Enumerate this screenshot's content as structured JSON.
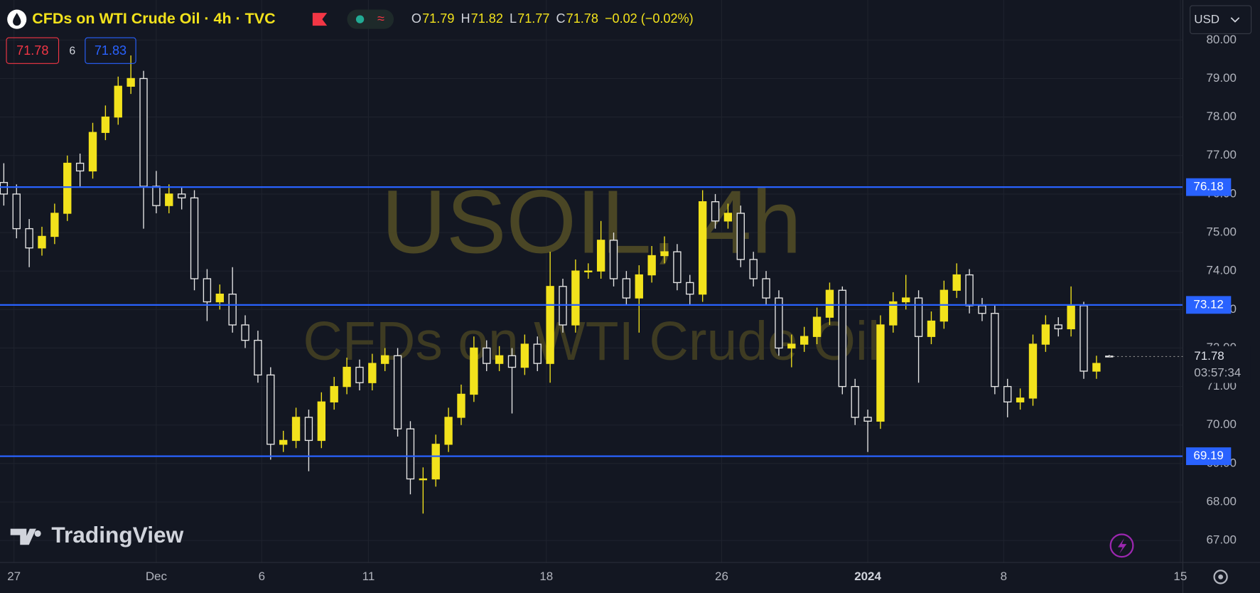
{
  "header": {
    "title": "CFDs on WTI Crude Oil · 4h · TVC",
    "ohlc": [
      {
        "letter": "O",
        "value": "71.79"
      },
      {
        "letter": "H",
        "value": "71.82"
      },
      {
        "letter": "L",
        "value": "71.77"
      },
      {
        "letter": "C",
        "value": "71.78"
      }
    ],
    "change": "−0.02 (−0.02%)",
    "sell": "71.78",
    "spread": "6",
    "buy": "71.83",
    "currency": "USD",
    "brand": "TradingView"
  },
  "chart_data": {
    "type": "candlestick",
    "watermark": "USOIL, 4h",
    "watermark_subtitle": "CFDs on WTI Crude Oil",
    "up_color": "#f2e21c",
    "down_color": "#e6e6e6",
    "level_color": "#2962ff",
    "open": [
      76.3,
      76.0,
      75.1,
      74.6,
      74.9,
      75.5,
      76.8,
      76.6,
      77.6,
      78.0,
      78.8,
      79.0,
      76.2,
      75.7,
      76.0,
      75.9,
      73.8,
      73.2,
      73.4,
      72.6,
      72.2,
      71.3,
      69.5,
      69.6,
      70.2,
      69.6,
      70.6,
      71.0,
      71.5,
      71.1,
      71.6,
      71.8,
      69.9,
      68.6,
      68.6,
      69.5,
      70.2,
      70.8,
      72.0,
      71.6,
      71.8,
      71.5,
      72.1,
      71.6,
      73.6,
      72.6,
      74.0,
      74.0,
      74.8,
      73.8,
      73.3,
      73.9,
      74.4,
      74.5,
      73.7,
      73.4,
      75.8,
      75.3,
      75.5,
      74.3,
      73.8,
      73.3,
      72.0,
      72.1,
      72.3,
      72.8,
      73.5,
      71.0,
      70.2,
      70.1,
      72.6,
      73.2,
      73.3,
      72.3,
      72.7,
      73.5,
      73.9,
      73.1,
      72.9,
      71.0,
      70.6,
      70.7,
      72.1,
      72.6,
      72.5,
      73.1,
      71.4,
      71.79
    ],
    "high": [
      76.8,
      76.25,
      75.35,
      75.15,
      75.75,
      77.0,
      77.05,
      77.85,
      78.3,
      79.05,
      79.6,
      79.2,
      76.6,
      76.25,
      76.2,
      76.1,
      74.05,
      73.65,
      74.1,
      72.85,
      72.45,
      71.5,
      69.85,
      70.45,
      70.4,
      70.85,
      71.25,
      71.75,
      71.7,
      71.85,
      72.0,
      72.0,
      70.1,
      68.9,
      69.75,
      70.45,
      71.05,
      72.3,
      72.2,
      72.05,
      72.0,
      72.35,
      72.3,
      74.5,
      73.8,
      74.3,
      74.2,
      75.3,
      75.0,
      74.0,
      74.15,
      74.65,
      74.9,
      74.7,
      73.9,
      76.1,
      76.0,
      75.75,
      75.7,
      74.5,
      74.0,
      73.5,
      72.35,
      72.55,
      73.05,
      73.7,
      73.6,
      71.2,
      70.4,
      72.85,
      73.45,
      73.9,
      73.5,
      72.95,
      73.75,
      74.2,
      74.05,
      73.3,
      73.1,
      71.2,
      70.95,
      72.35,
      72.85,
      72.8,
      73.6,
      73.2,
      71.8,
      71.82
    ],
    "low": [
      75.7,
      74.85,
      74.1,
      74.4,
      74.7,
      75.3,
      76.2,
      76.4,
      77.4,
      77.8,
      78.6,
      75.1,
      75.5,
      75.5,
      75.6,
      73.5,
      72.7,
      73.0,
      72.4,
      72.0,
      71.1,
      69.1,
      69.3,
      69.4,
      68.8,
      69.4,
      70.4,
      70.8,
      70.9,
      70.9,
      71.4,
      69.7,
      68.2,
      67.7,
      68.4,
      69.3,
      70.0,
      70.6,
      71.4,
      71.4,
      70.3,
      71.3,
      71.4,
      71.1,
      72.4,
      72.4,
      73.8,
      73.8,
      73.6,
      73.1,
      72.4,
      73.7,
      74.2,
      73.5,
      73.1,
      73.2,
      75.1,
      75.1,
      74.1,
      73.6,
      73.1,
      71.8,
      71.5,
      71.9,
      72.1,
      72.6,
      70.8,
      70.0,
      69.3,
      69.9,
      72.4,
      73.0,
      71.1,
      72.1,
      72.5,
      73.3,
      72.9,
      72.7,
      70.8,
      70.2,
      70.4,
      70.5,
      71.9,
      72.3,
      72.3,
      71.2,
      71.2,
      71.77
    ],
    "close": [
      76.0,
      75.1,
      74.6,
      74.9,
      75.5,
      76.8,
      76.6,
      77.6,
      78.0,
      78.8,
      79.0,
      76.2,
      75.7,
      76.0,
      75.9,
      73.8,
      73.2,
      73.4,
      72.6,
      72.2,
      71.3,
      69.5,
      69.6,
      70.2,
      69.6,
      70.6,
      71.0,
      71.5,
      71.1,
      71.6,
      71.8,
      69.9,
      68.6,
      68.6,
      69.5,
      70.2,
      70.8,
      72.0,
      71.6,
      71.8,
      71.5,
      72.1,
      71.6,
      73.6,
      72.6,
      74.0,
      74.0,
      74.8,
      73.8,
      73.3,
      73.9,
      74.4,
      74.5,
      73.7,
      73.4,
      75.8,
      75.3,
      75.5,
      74.3,
      73.8,
      73.3,
      72.0,
      72.1,
      72.3,
      72.8,
      73.5,
      71.0,
      70.2,
      70.1,
      72.6,
      73.2,
      73.3,
      72.3,
      72.7,
      73.5,
      73.9,
      73.1,
      72.9,
      71.0,
      70.6,
      70.7,
      72.1,
      72.6,
      72.5,
      73.1,
      71.4,
      71.6,
      71.78
    ],
    "xlim": [
      -0.3,
      92.8
    ],
    "xticks": [
      {
        "value": 0.8,
        "label": "27"
      },
      {
        "value": 12.0,
        "label": "Dec"
      },
      {
        "value": 20.3,
        "label": "6"
      },
      {
        "value": 28.7,
        "label": "11"
      },
      {
        "value": 42.7,
        "label": "18"
      },
      {
        "value": 56.5,
        "label": "26"
      },
      {
        "value": 68.0,
        "label": "2024"
      },
      {
        "value": 78.7,
        "label": "8"
      },
      {
        "value": 92.6,
        "label": "15"
      }
    ],
    "ylim": [
      66.43,
      81.04
    ],
    "yticks": [
      {
        "value": 67,
        "label": "67.00"
      },
      {
        "value": 68,
        "label": "68.00"
      },
      {
        "value": 69,
        "label": "69.00"
      },
      {
        "value": 70,
        "label": "70.00"
      },
      {
        "value": 71,
        "label": "71.00"
      },
      {
        "value": 72,
        "label": "72.00"
      },
      {
        "value": 73,
        "label": "73.00"
      },
      {
        "value": 74,
        "label": "74.00"
      },
      {
        "value": 75,
        "label": "75.00"
      },
      {
        "value": 76,
        "label": "76.00"
      },
      {
        "value": 77,
        "label": "77.00"
      },
      {
        "value": 78,
        "label": "78.00"
      },
      {
        "value": 79,
        "label": "79.00"
      },
      {
        "value": 80,
        "label": "80.00"
      }
    ],
    "levels": [
      76.18,
      73.12,
      69.19
    ],
    "last_price": 71.78,
    "countdown": "03:57:34",
    "grid": true
  }
}
